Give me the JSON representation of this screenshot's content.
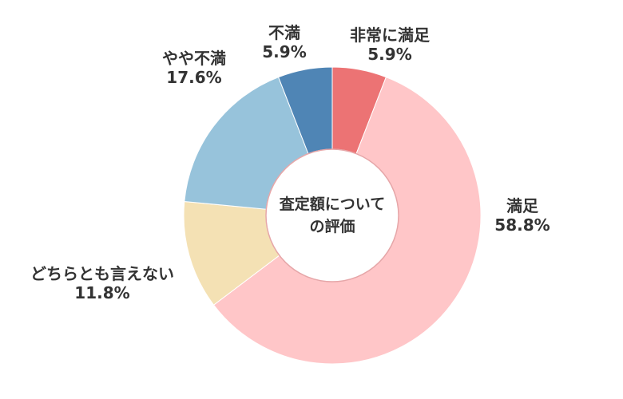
{
  "chart_data": {
    "type": "pie",
    "donut": true,
    "center_title": [
      "査定額について",
      "の評価"
    ],
    "slices": [
      {
        "label": "非常に満足",
        "value": 5.9,
        "value_label": "5.9%",
        "color": "#EC7374"
      },
      {
        "label": "満足",
        "value": 58.8,
        "value_label": "58.8%",
        "color": "#FFC6C8"
      },
      {
        "label": "どちらとも言えない",
        "value": 11.8,
        "value_label": "11.8%",
        "color": "#F4E1B4"
      },
      {
        "label": "やや不満",
        "value": 17.6,
        "value_label": "17.6%",
        "color": "#97C3DB"
      },
      {
        "label": "不満",
        "value": 5.9,
        "value_label": "5.9%",
        "color": "#4F85B5"
      }
    ]
  }
}
